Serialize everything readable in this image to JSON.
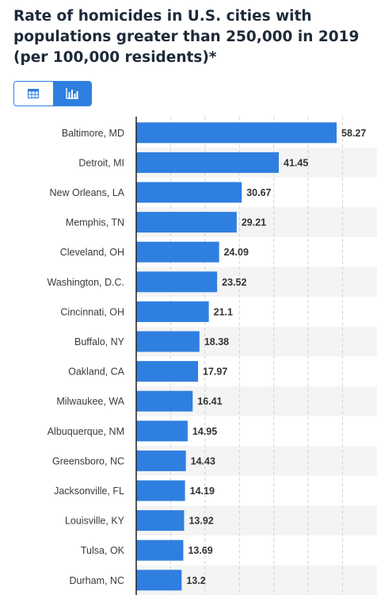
{
  "title": "Rate of homicides in U.S. cities with populations greater than 250,000 in 2019 (per 100,000 residents)*",
  "view_toggle": {
    "table_icon": "table-icon",
    "chart_icon": "bar-chart-icon",
    "active": "chart"
  },
  "colors": {
    "bar": "#2f7fe0",
    "band": "#f4f4f4",
    "grid": "#d3d3d3",
    "axis": "#222222",
    "title": "#1d2a39"
  },
  "chart_data": {
    "type": "bar",
    "orientation": "horizontal",
    "title": "",
    "xlabel": "",
    "ylabel": "",
    "xlim": [
      0,
      70
    ],
    "grid": true,
    "categories": [
      "Baltimore, MD",
      "Detroit, MI",
      "New Orleans, LA",
      "Memphis, TN",
      "Cleveland, OH",
      "Washington, D.C.",
      "Cincinnati, OH",
      "Buffalo, NY",
      "Oakland, CA",
      "Milwaukee, WA",
      "Albuquerque, NM",
      "Greensboro, NC",
      "Jacksonville, FL",
      "Louisville, KY",
      "Tulsa, OK",
      "Durham, NC"
    ],
    "values": [
      58.27,
      41.45,
      30.67,
      29.21,
      24.09,
      23.52,
      21.1,
      18.38,
      17.97,
      16.41,
      14.95,
      14.43,
      14.19,
      13.92,
      13.69,
      13.2
    ],
    "value_labels": [
      "58.27",
      "41.45",
      "30.67",
      "29.21",
      "24.09",
      "23.52",
      "21.1",
      "18.38",
      "17.97",
      "16.41",
      "14.95",
      "14.43",
      "14.19",
      "13.92",
      "13.69",
      "13.2"
    ]
  }
}
